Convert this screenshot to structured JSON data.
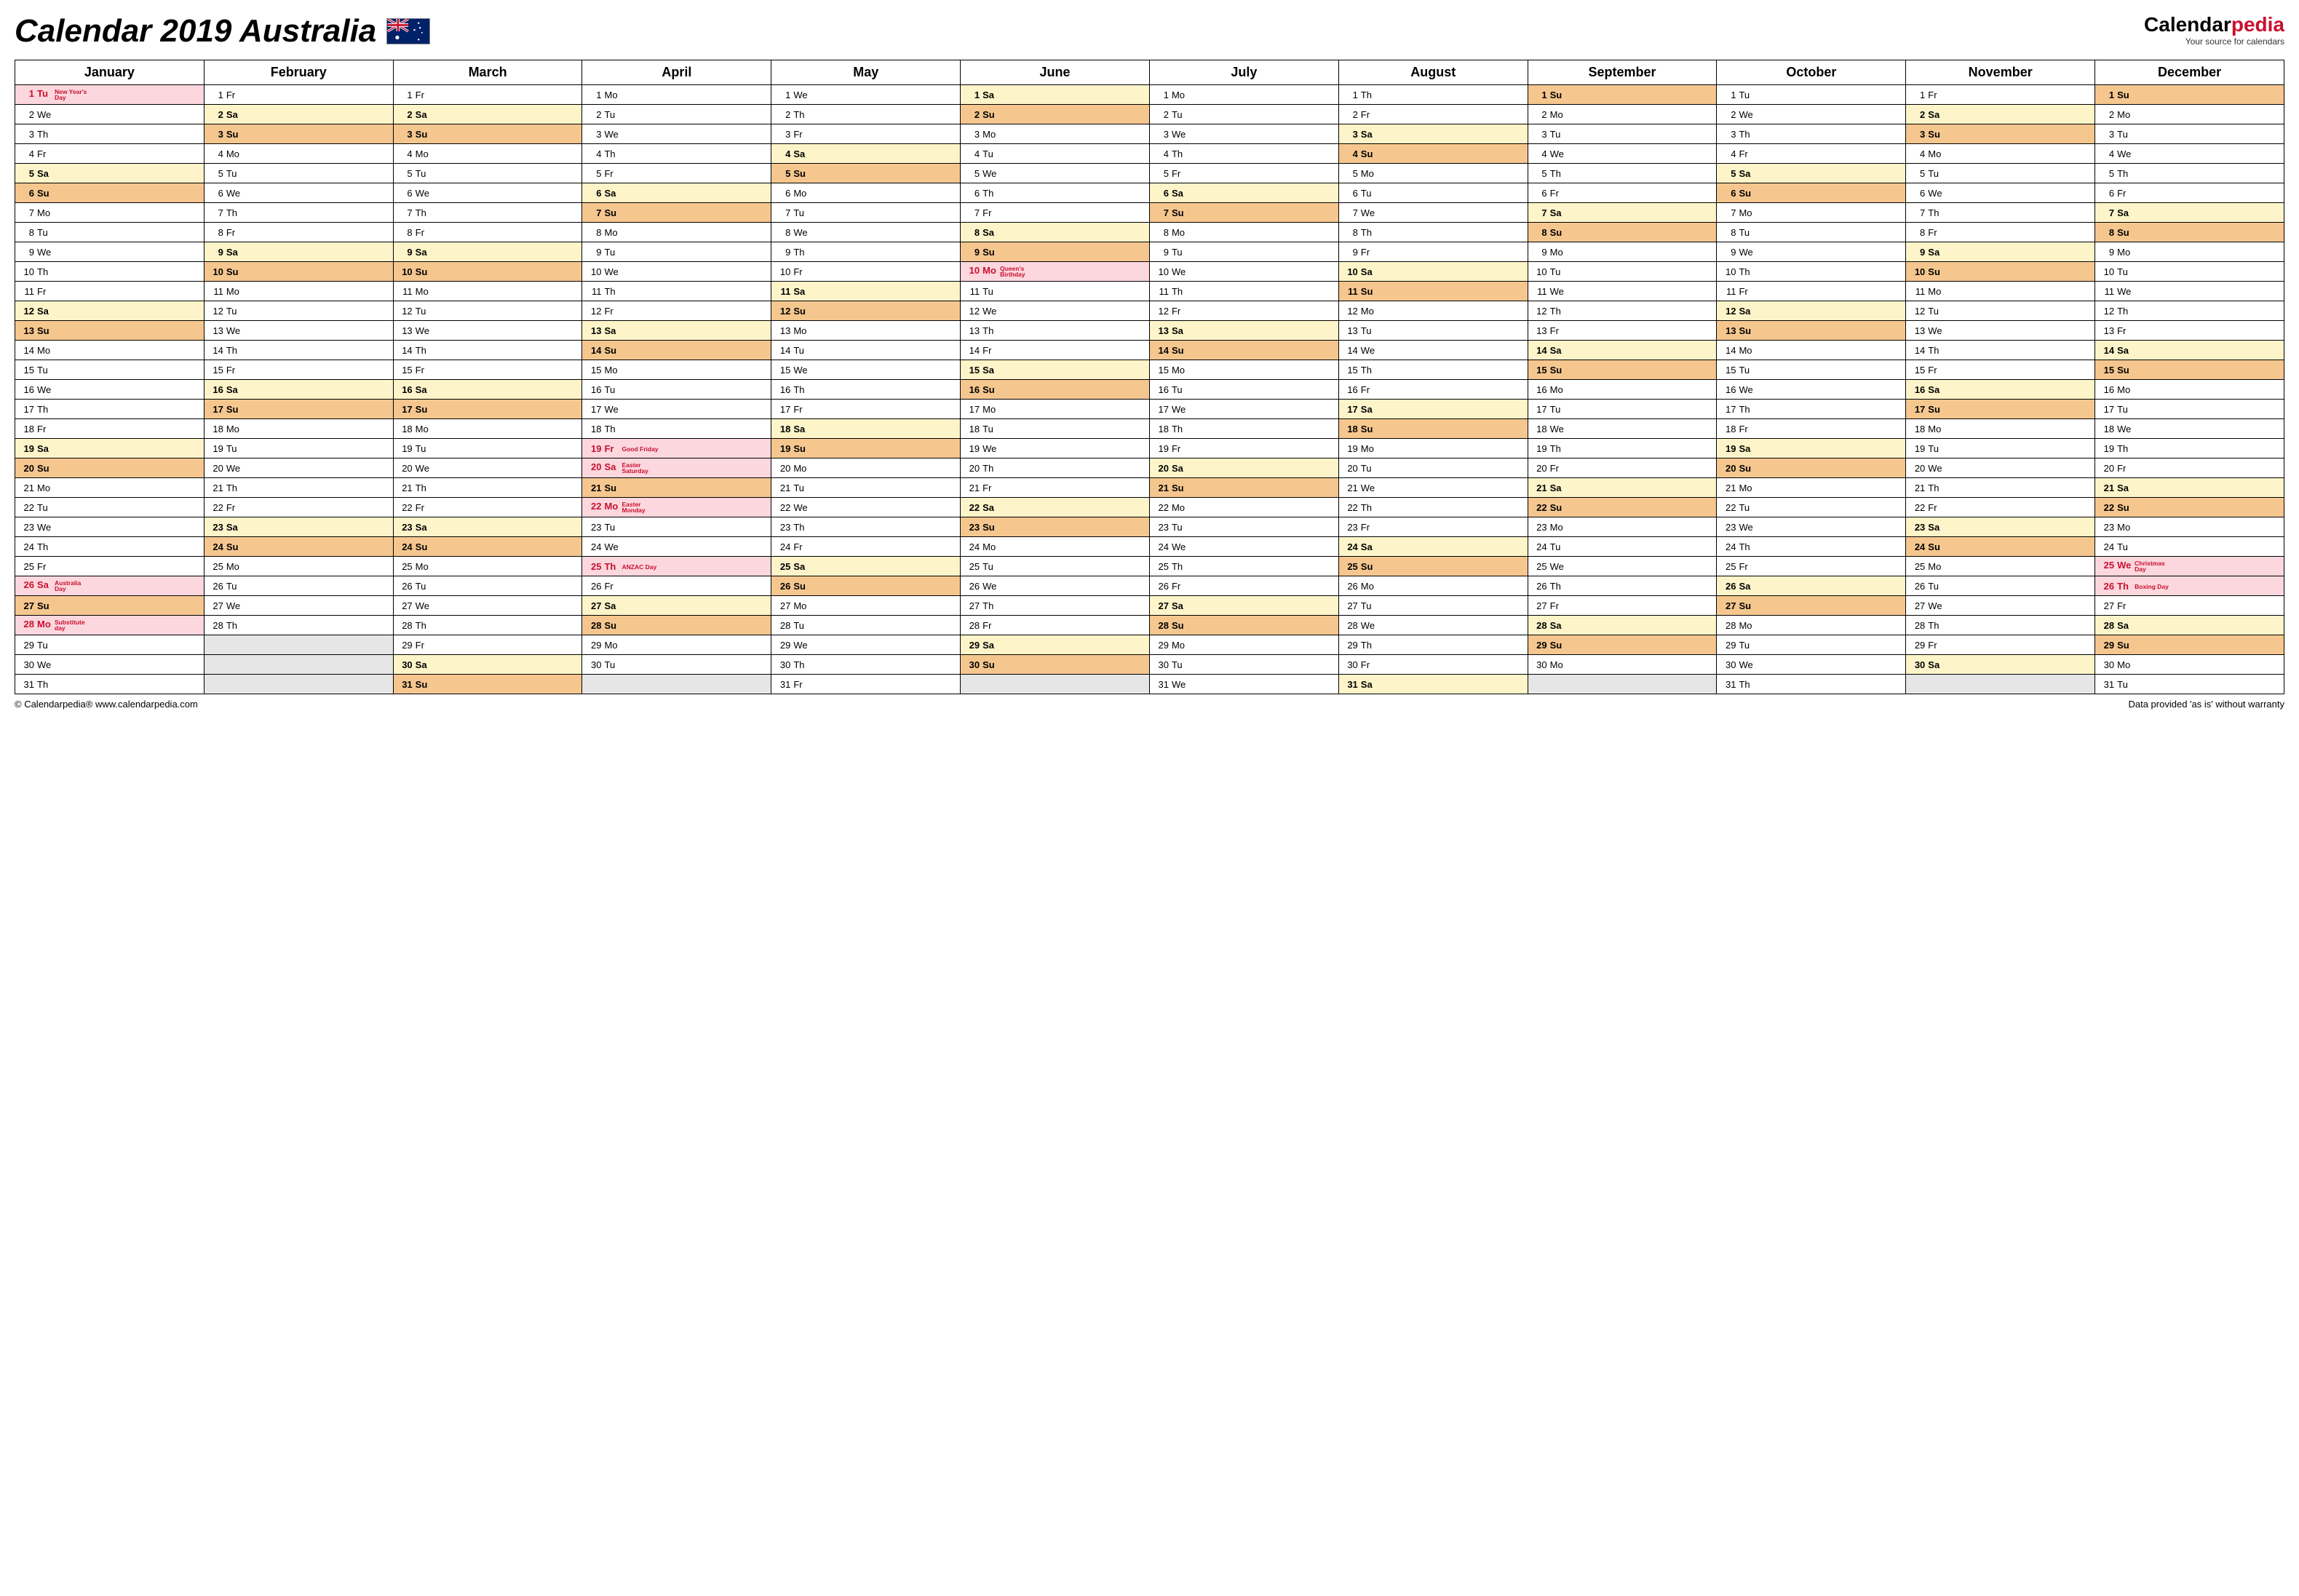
{
  "title": "Calendar 2019 Australia",
  "logo": {
    "brand1": "Calendar",
    "brand2": "pedia",
    "tagline": "Your source for calendars"
  },
  "footer": {
    "left": "© Calendarpedia®   www.calendarpedia.com",
    "right": "Data provided 'as is' without warranty"
  },
  "colors": {
    "sa": "#fdf5c9",
    "su": "#f5c78f",
    "ho": "#fcd7de",
    "em": "#e6e6e6",
    "holtext": "#c8102e"
  },
  "months": [
    "January",
    "February",
    "March",
    "April",
    "May",
    "June",
    "July",
    "August",
    "September",
    "October",
    "November",
    "December"
  ],
  "startDow": [
    1,
    4,
    4,
    0,
    2,
    5,
    0,
    3,
    6,
    1,
    4,
    6
  ],
  "lengths": [
    31,
    28,
    31,
    30,
    31,
    30,
    31,
    31,
    30,
    31,
    30,
    31
  ],
  "dowNames": [
    "Mo",
    "Tu",
    "We",
    "Th",
    "Fr",
    "Sa",
    "Su"
  ],
  "holidays": {
    "0": {
      "1": "New Year's Day",
      "26": "Australia Day",
      "28": "Substitute day"
    },
    "3": {
      "19": "Good Friday",
      "20": "Easter Saturday",
      "22": "Easter Monday",
      "25": "ANZAC Day"
    },
    "5": {
      "10": "Queen's Birthday"
    },
    "11": {
      "25": "Christmas Day",
      "26": "Boxing Day"
    }
  }
}
